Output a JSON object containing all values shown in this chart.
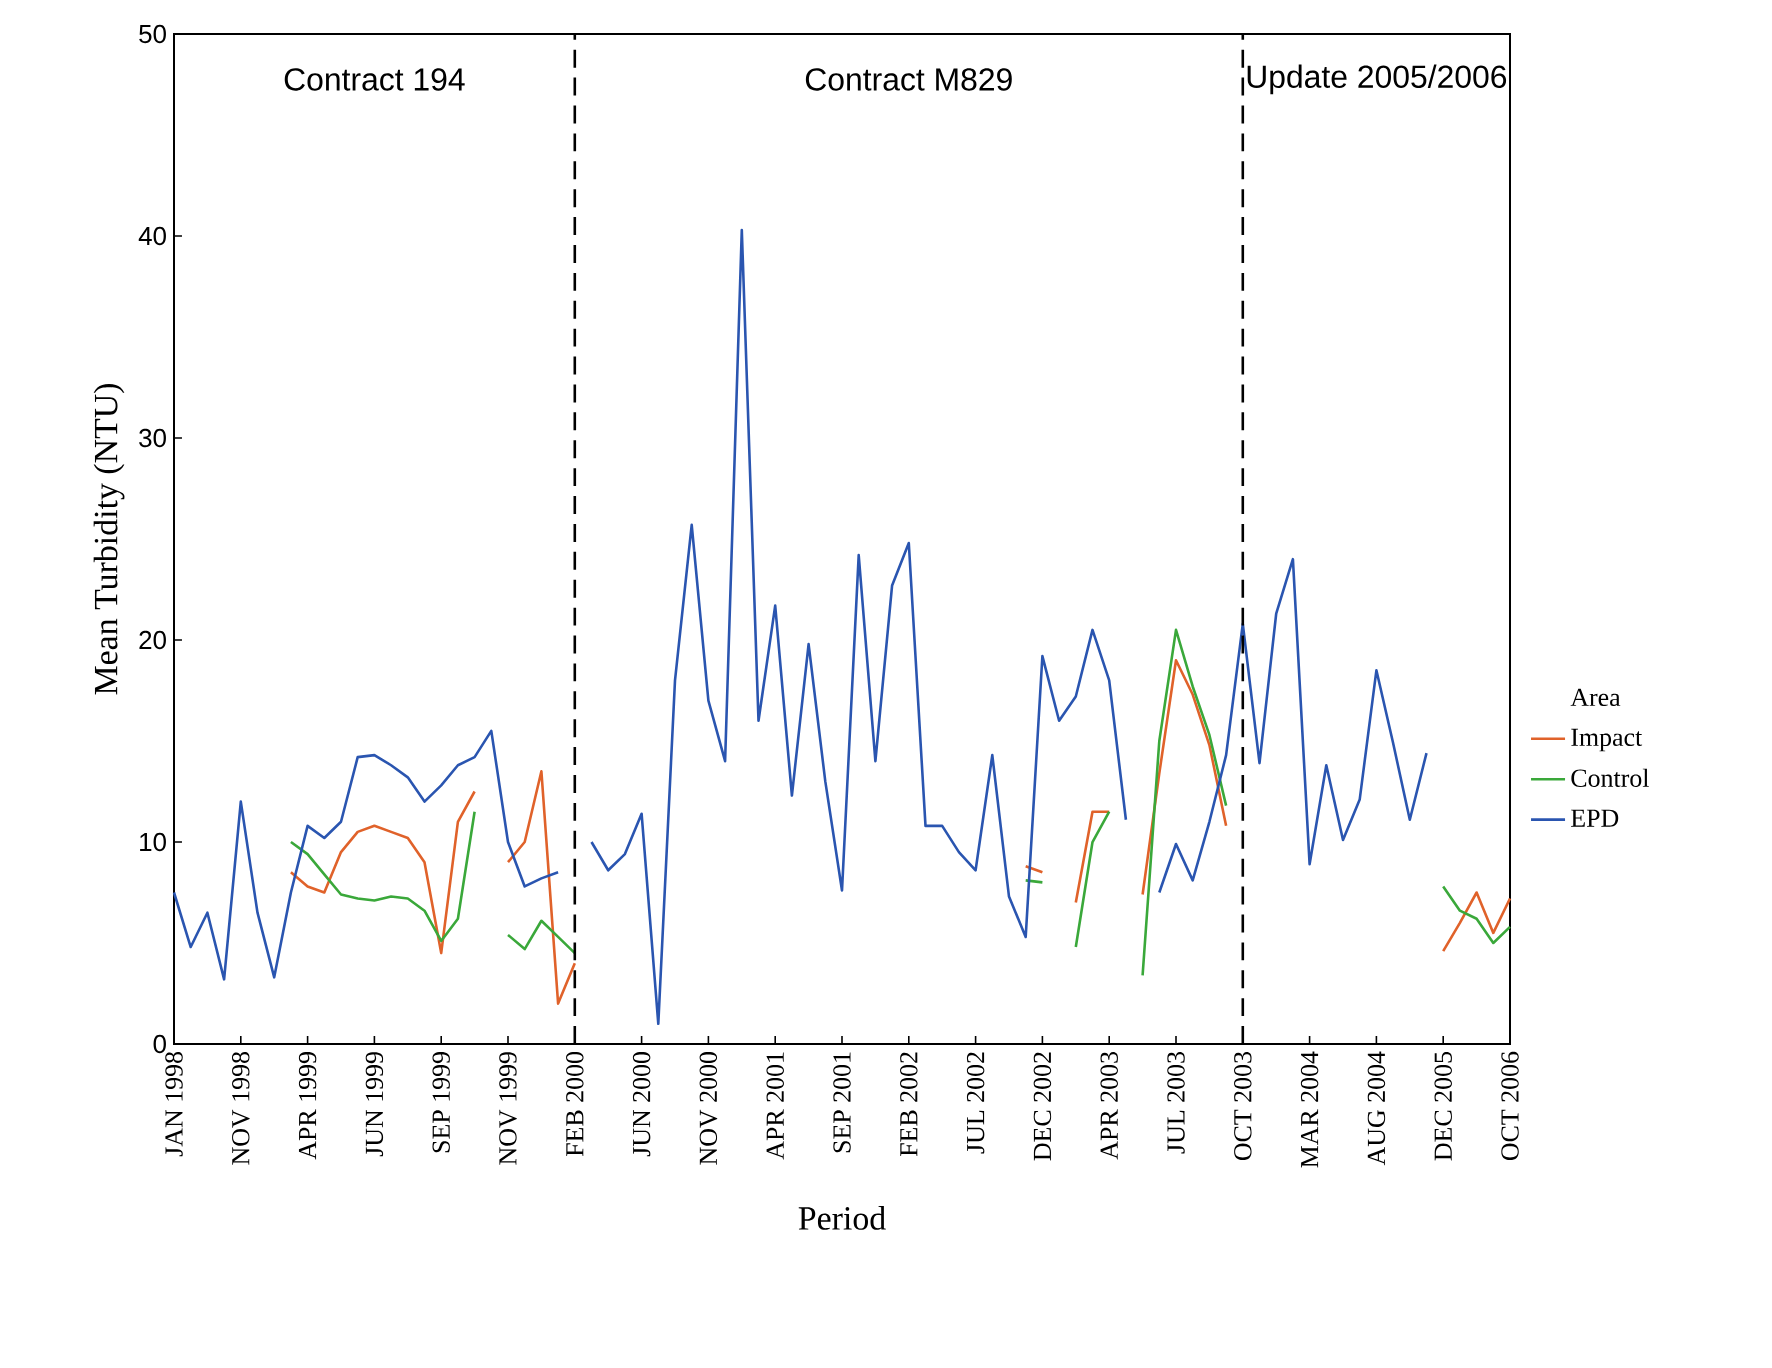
{
  "chart_data": {
    "type": "line",
    "xlabel": "Period",
    "ylabel": "Mean Turbidity (NTU)",
    "legend_title": "Area",
    "categories": [
      "JAN 1998",
      null,
      null,
      null,
      "NOV 1998",
      null,
      null,
      null,
      "APR 1999",
      null,
      null,
      null,
      "JUN 1999",
      null,
      null,
      null,
      "SEP 1999",
      null,
      null,
      null,
      "NOV 1999",
      null,
      null,
      null,
      "FEB 2000",
      null,
      null,
      null,
      "JUN 2000",
      null,
      null,
      null,
      "NOV 2000",
      null,
      null,
      null,
      "APR 2001",
      null,
      null,
      null,
      "SEP 2001",
      null,
      null,
      null,
      "FEB 2002",
      null,
      null,
      null,
      "JUL 2002",
      null,
      null,
      null,
      "DEC 2002",
      null,
      null,
      null,
      "APR 2003",
      null,
      null,
      null,
      "JUL 2003",
      null,
      null,
      null,
      "OCT 2003",
      null,
      null,
      null,
      "MAR 2004",
      null,
      null,
      null,
      "AUG 2004",
      null,
      null,
      null,
      "DEC 2005",
      null,
      null,
      null,
      "OCT 2006"
    ],
    "series": [
      {
        "name": "Impact",
        "color": "#e0622a",
        "values": [
          null,
          null,
          null,
          null,
          null,
          null,
          null,
          8.5,
          7.8,
          7.5,
          9.5,
          10.5,
          10.8,
          10.5,
          10.2,
          9,
          4.5,
          11,
          12.5,
          null,
          9,
          10,
          13.5,
          2,
          4,
          null,
          null,
          null,
          null,
          null,
          null,
          null,
          null,
          null,
          null,
          null,
          null,
          null,
          null,
          null,
          null,
          null,
          null,
          null,
          null,
          null,
          null,
          null,
          null,
          null,
          null,
          8.8,
          8.5,
          null,
          7,
          11.5,
          11.5,
          null,
          7.4,
          13.4,
          19,
          17.3,
          14.8,
          10.8,
          null,
          null,
          null,
          null,
          null,
          null,
          null,
          null,
          null,
          null,
          null,
          null,
          4.6,
          6,
          7.5,
          5.5,
          7.2
        ]
      },
      {
        "name": "Control",
        "color": "#3aa83a",
        "values": [
          null,
          null,
          null,
          null,
          null,
          null,
          null,
          10,
          9.4,
          8.4,
          7.4,
          7.2,
          7.1,
          7.3,
          7.2,
          6.6,
          5.1,
          6.2,
          11.5,
          null,
          5.4,
          4.7,
          6.1,
          5.3,
          4.5,
          null,
          null,
          null,
          null,
          null,
          null,
          null,
          null,
          null,
          null,
          null,
          null,
          null,
          null,
          null,
          null,
          null,
          null,
          null,
          null,
          null,
          null,
          null,
          null,
          null,
          null,
          8.1,
          8,
          null,
          4.8,
          10,
          11.5,
          null,
          3.4,
          15,
          20.5,
          17.7,
          15.3,
          11.8,
          null,
          null,
          null,
          null,
          null,
          null,
          null,
          null,
          null,
          null,
          null,
          null,
          7.8,
          6.6,
          6.2,
          5,
          5.8
        ]
      },
      {
        "name": "EPD",
        "color": "#2a55b0",
        "values": [
          7.5,
          4.8,
          6.5,
          3.2,
          12,
          6.5,
          3.3,
          7.5,
          10.8,
          10.2,
          11,
          14.2,
          14.3,
          13.8,
          13.2,
          12,
          12.8,
          13.8,
          14.2,
          15.5,
          10,
          7.8,
          8.2,
          8.5,
          null,
          10,
          8.6,
          9.4,
          11.4,
          1,
          18,
          25.7,
          17,
          14,
          40.3,
          16,
          21.7,
          12.3,
          19.8,
          13,
          7.6,
          24.2,
          14,
          22.7,
          24.8,
          10.8,
          10.8,
          9.5,
          8.6,
          14.3,
          7.3,
          5.3,
          19.2,
          16,
          17.2,
          20.5,
          18,
          11.1,
          null,
          7.5,
          9.9,
          8.1,
          11,
          14.3,
          20.8,
          13.9,
          21.3,
          24,
          8.9,
          13.8,
          10.1,
          12.1,
          18.5,
          14.9,
          11.1,
          14.4,
          null,
          null,
          null,
          null,
          null
        ]
      }
    ],
    "ylim": [
      0,
      50
    ],
    "yticks": [
      0,
      10,
      20,
      30,
      40,
      50
    ],
    "ref_lines": [
      {
        "axis": "x",
        "value": "FEB 2000",
        "color": "#000000",
        "line_style": "dashed"
      },
      {
        "axis": "x",
        "value": "OCT 2003",
        "color": "#000000",
        "line_style": "dashed"
      }
    ],
    "annotations": [
      "Contract 194",
      "Contract M829",
      "Update 2005/2006"
    ],
    "grid": false,
    "legend": "right",
    "marker": "none",
    "line_style": "solid"
  }
}
